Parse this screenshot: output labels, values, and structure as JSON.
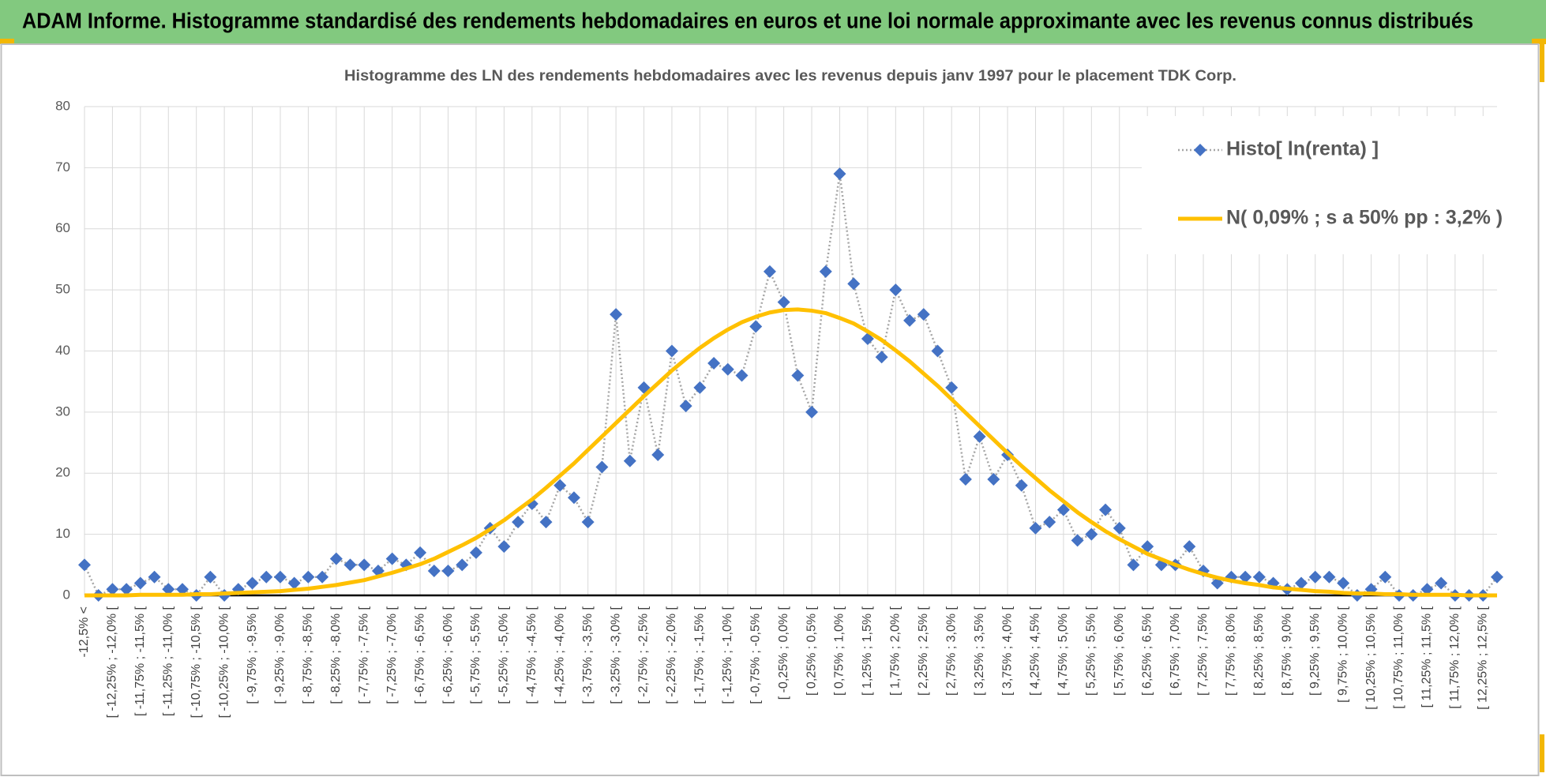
{
  "header": {
    "title": "ADAM Informe. Histogramme standardisé des rendements hebdomadaires en euros et une loi normale approximante avec les revenus connus distribués"
  },
  "chart_data": {
    "type": "line",
    "title": "Histogramme  des LN des rendements  hebdomadaires avec les revenus depuis janv 1997 pour le placement TDK Corp.",
    "categories": [
      "-12,5% <",
      null,
      "[ -12,25% ; -12,0% [",
      null,
      "[ -11,75% ; -11,5% [",
      null,
      "[ -11,25% ; -11,0% [",
      null,
      "[ -10,75% ; -10,5% [",
      null,
      "[ -10,25% ; -10,0% [",
      null,
      "[ -9,75% ; -9,5% [",
      null,
      "[ -9,25% ; -9,0% [",
      null,
      "[ -8,75% ; -8,5% [",
      null,
      "[ -8,25% ; -8,0% [",
      null,
      "[ -7,75% ; -7,5% [",
      null,
      "[ -7,25% ; -7,0% [",
      null,
      "[ -6,75% ; -6,5% [",
      null,
      "[ -6,25% ; -6,0% [",
      null,
      "[ -5,75% ; -5,5% [",
      null,
      "[ -5,25% ; -5,0% [",
      null,
      "[ -4,75% ; -4,5% [",
      null,
      "[ -4,25% ; -4,0% [",
      null,
      "[ -3,75% ; -3,5% [",
      null,
      "[ -3,25% ; -3,0% [",
      null,
      "[ -2,75% ; -2,5% [",
      null,
      "[ -2,25% ; -2,0% [",
      null,
      "[ -1,75% ; -1,5% [",
      null,
      "[ -1,25% ; -1,0% [",
      null,
      "[ -0,75% ; -0,5% [",
      null,
      "[ -0,25% ; 0,0% [",
      null,
      "[ 0,25% ; 0,5% [",
      null,
      "[ 0,75% ; 1,0% [",
      null,
      "[ 1,25% ; 1,5% [",
      null,
      "[ 1,75% ; 2,0% [",
      null,
      "[ 2,25% ; 2,5% [",
      null,
      "[ 2,75% ; 3,0% [",
      null,
      "[ 3,25% ; 3,5% [",
      null,
      "[ 3,75% ; 4,0% [",
      null,
      "[ 4,25% ; 4,5% [",
      null,
      "[ 4,75% ; 5,0% [",
      null,
      "[ 5,25% ; 5,5% [",
      null,
      "[ 5,75% ; 6,0% [",
      null,
      "[ 6,25% ; 6,5% [",
      null,
      "[ 6,75% ; 7,0% [",
      null,
      "[ 7,25% ; 7,5% [",
      null,
      "[ 7,75% ; 8,0% [",
      null,
      "[ 8,25% ; 8,5% [",
      null,
      "[ 8,75% ; 9,0% [",
      null,
      "[ 9,25% ; 9,5% [",
      null,
      "[ 9,75% ; 10,0% [",
      null,
      "[ 10,25% ; 10,5% [",
      null,
      "[ 10,75% ; 11,0% [",
      null,
      "[ 11,25% ; 11,5% [",
      null,
      "[ 11,75% ; 12,0% [",
      null,
      "[ 12,25% ; 12,5% [",
      null
    ],
    "series": [
      {
        "name": "Histo[ ln(renta) ]",
        "color": "#4472c4",
        "marker": "diamond",
        "line_style": "dotted",
        "line_color": "#a6a6a6",
        "values": [
          5,
          0,
          1,
          1,
          2,
          3,
          1,
          1,
          0,
          3,
          0,
          1,
          2,
          3,
          3,
          2,
          3,
          3,
          6,
          5,
          5,
          4,
          6,
          5,
          7,
          4,
          4,
          5,
          7,
          11,
          8,
          12,
          15,
          12,
          18,
          16,
          12,
          21,
          46,
          22,
          34,
          23,
          40,
          31,
          34,
          38,
          37,
          36,
          44,
          53,
          48,
          36,
          30,
          53,
          69,
          51,
          42,
          39,
          50,
          45,
          46,
          40,
          34,
          19,
          26,
          19,
          23,
          18,
          11,
          12,
          14,
          9,
          10,
          14,
          11,
          5,
          8,
          5,
          5,
          8,
          4,
          2,
          3,
          3,
          3,
          2,
          1,
          2,
          3,
          3,
          2,
          0,
          1,
          3,
          0,
          0,
          1,
          2,
          0,
          0,
          0,
          3
        ]
      },
      {
        "name": "N( 0,09% ; s a 50% pp : 3,2% )",
        "color": "#ffc000",
        "marker": "none",
        "line_style": "solid",
        "values": [
          0.0,
          0.0,
          0.0,
          0.0,
          0.1,
          0.1,
          0.1,
          0.1,
          0.2,
          0.2,
          0.3,
          0.4,
          0.5,
          0.6,
          0.7,
          0.9,
          1.1,
          1.4,
          1.7,
          2.1,
          2.5,
          3.1,
          3.7,
          4.4,
          5.1,
          6.0,
          7.1,
          8.2,
          9.4,
          10.8,
          12.3,
          14.0,
          15.7,
          17.6,
          19.6,
          21.6,
          23.8,
          26.0,
          28.2,
          30.4,
          32.6,
          34.7,
          36.8,
          38.7,
          40.5,
          42.1,
          43.5,
          44.7,
          45.6,
          46.3,
          46.7,
          46.8,
          46.6,
          46.2,
          45.4,
          44.5,
          43.2,
          41.8,
          40.1,
          38.3,
          36.3,
          34.3,
          32.1,
          29.9,
          27.7,
          25.5,
          23.3,
          21.2,
          19.2,
          17.2,
          15.4,
          13.6,
          12.0,
          10.5,
          9.2,
          8.0,
          6.8,
          5.9,
          5.0,
          4.2,
          3.5,
          2.9,
          2.4,
          2.0,
          1.7,
          1.3,
          1.1,
          0.9,
          0.7,
          0.6,
          0.4,
          0.3,
          0.3,
          0.2,
          0.2,
          0.1,
          0.1,
          0.1,
          0.1,
          0.0,
          0.0,
          0.0
        ]
      }
    ],
    "ylim": [
      0,
      80
    ],
    "yticks": [
      0,
      10,
      20,
      30,
      40,
      50,
      60,
      70,
      80
    ],
    "grid": true,
    "legend": "upper right"
  }
}
